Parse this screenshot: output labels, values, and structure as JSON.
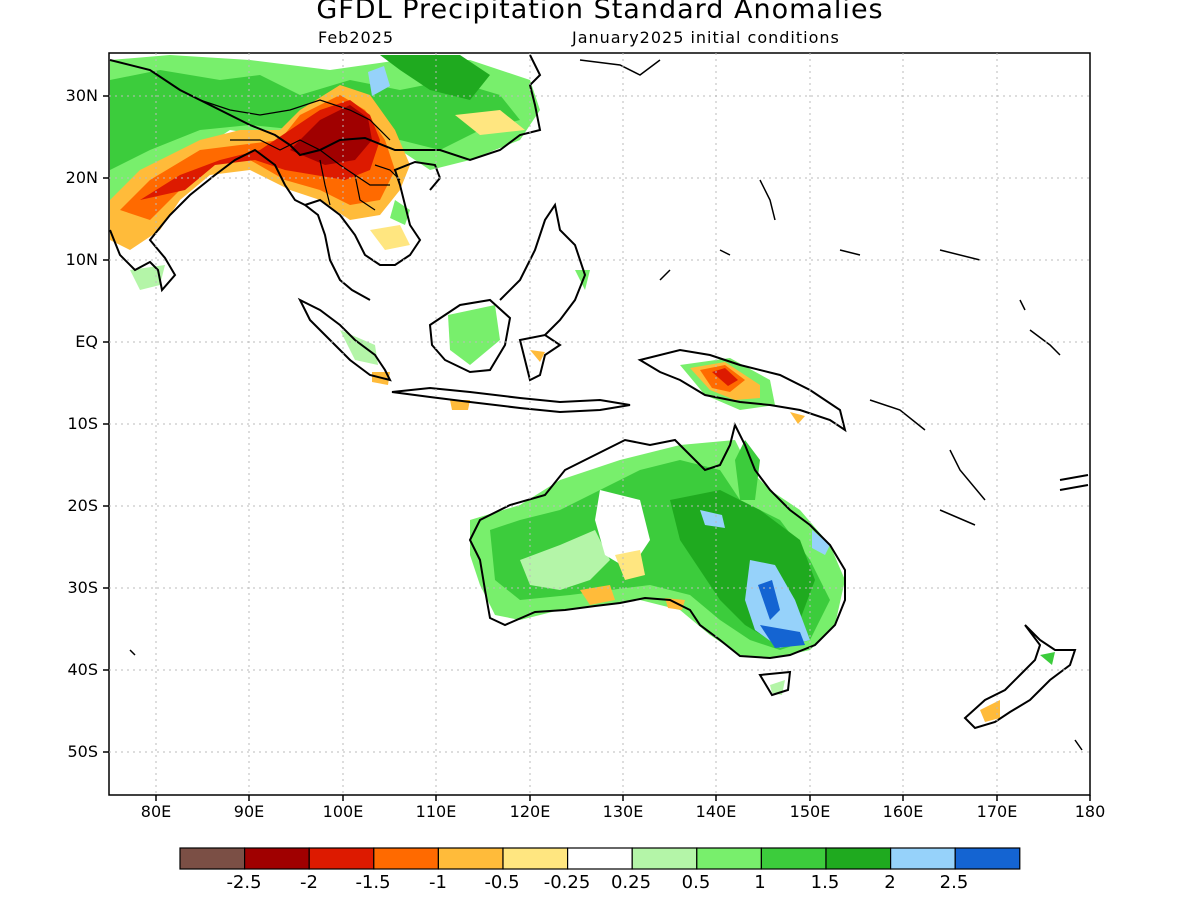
{
  "title": "GFDL Precipitation Standard Anomalies",
  "subtitle_left": "Feb2025",
  "subtitle_right": "January2025 initial conditions",
  "lat_labels": [
    "30N",
    "20N",
    "10N",
    "EQ",
    "10S",
    "20S",
    "30S",
    "40S",
    "50S"
  ],
  "lon_labels": [
    "80E",
    "90E",
    "100E",
    "110E",
    "120E",
    "130E",
    "140E",
    "150E",
    "160E",
    "170E",
    "180"
  ],
  "colorbar": {
    "colors": [
      "#7b4f45",
      "#a00000",
      "#dd1a00",
      "#ff6a00",
      "#ffbb3a",
      "#ffe680",
      "#ffffff",
      "#b4f5a8",
      "#78ef6c",
      "#3ccc3c",
      "#1faa1f",
      "#96d2fa",
      "#1464d2"
    ],
    "tick_labels": [
      "-2.5",
      "-2",
      "-1.5",
      "-1",
      "-0.5",
      "-0.25",
      "0.25",
      "0.5",
      "1",
      "1.5",
      "2",
      "2.5"
    ]
  },
  "palette": {
    "dry_strong": "#dd1a00",
    "dry_deep": "#a00000",
    "dry_mod": "#ff6a00",
    "dry_weak": "#ffbb3a",
    "dry_faint": "#ffe680",
    "wet_faint": "#b4f5a8",
    "wet_weak": "#78ef6c",
    "wet_mod": "#3ccc3c",
    "wet_strong": "#1faa1f",
    "wet_deep": "#96d2fa",
    "wet_extreme": "#1464d2"
  }
}
